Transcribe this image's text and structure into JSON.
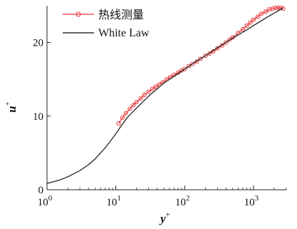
{
  "chart_data": {
    "type": "line",
    "xscale": "log",
    "xlim": [
      1,
      3000
    ],
    "ylim": [
      0,
      25
    ],
    "xticks": [
      {
        "base": "10",
        "exp": "0"
      },
      {
        "base": "10",
        "exp": "1"
      },
      {
        "base": "10",
        "exp": "2"
      },
      {
        "base": "10",
        "exp": "3"
      }
    ],
    "yticks": [
      "0",
      "10",
      "20"
    ],
    "xlabel": {
      "main": "y",
      "sup": "+"
    },
    "ylabel": {
      "main": "u",
      "sup": "+"
    },
    "legend_position": "top-left",
    "grid": false,
    "series": [
      {
        "name": "热线测量",
        "style": "line-with-open-circles",
        "color": "#e8383a",
        "x": [
          11,
          12.5,
          14,
          16,
          18,
          20,
          23,
          26,
          30,
          34,
          38,
          43,
          48,
          55,
          62,
          70,
          80,
          90,
          100,
          115,
          130,
          150,
          170,
          200,
          230,
          260,
          300,
          350,
          400,
          450,
          500,
          600,
          700,
          800,
          900,
          1000,
          1150,
          1300,
          1500,
          1700,
          1900,
          2100,
          2300,
          2500,
          2700
        ],
        "y": [
          9.0,
          9.8,
          10.4,
          11.0,
          11.5,
          11.9,
          12.4,
          12.9,
          13.3,
          13.7,
          14.0,
          14.3,
          14.6,
          15.0,
          15.3,
          15.6,
          15.9,
          16.2,
          16.4,
          16.8,
          17.1,
          17.4,
          17.8,
          18.2,
          18.5,
          18.8,
          19.2,
          19.6,
          20.0,
          20.4,
          20.7,
          21.3,
          21.8,
          22.3,
          22.7,
          23.1,
          23.5,
          23.9,
          24.2,
          24.5,
          24.6,
          24.7,
          24.7,
          24.7,
          24.6
        ]
      },
      {
        "name": "White Law",
        "style": "line",
        "color": "#333333",
        "x": [
          1,
          1.5,
          2,
          3,
          4,
          5,
          6,
          7,
          8,
          10,
          12,
          15,
          20,
          30,
          50,
          70,
          100,
          150,
          200,
          300,
          500,
          700,
          1000,
          1500,
          2000,
          2700
        ],
        "y": [
          0.85,
          1.3,
          1.75,
          2.6,
          3.4,
          4.2,
          5.0,
          5.7,
          6.4,
          7.6,
          8.7,
          9.9,
          11.1,
          12.7,
          14.5,
          15.4,
          16.4,
          17.5,
          18.2,
          19.3,
          20.6,
          21.4,
          22.3,
          23.3,
          24.0,
          24.7
        ]
      }
    ]
  }
}
